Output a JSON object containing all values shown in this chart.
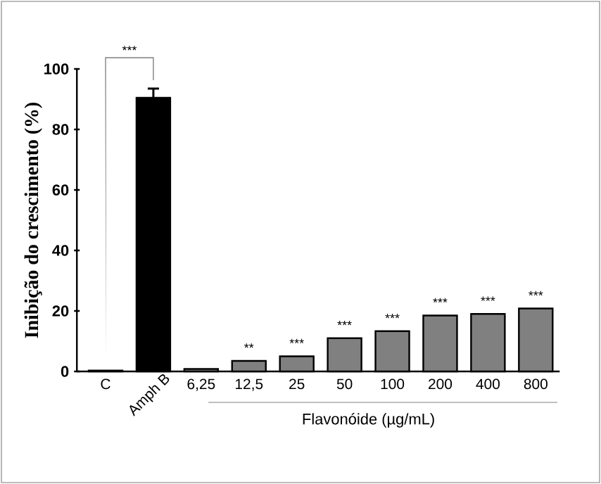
{
  "chart_data": {
    "type": "bar",
    "ylabel": "Inibição do crescimento (%)",
    "xlabel": "Flavonóide (µg/mL)",
    "categories": [
      "C",
      "Amph B",
      "6,25",
      "12,5",
      "25",
      "50",
      "100",
      "200",
      "400",
      "800"
    ],
    "values": [
      0.3,
      90.5,
      0.8,
      3.5,
      5,
      11,
      13.3,
      18.5,
      19,
      20.8
    ],
    "errors": [
      null,
      3,
      null,
      null,
      null,
      null,
      null,
      null,
      null,
      null
    ],
    "colors": [
      "#000000",
      "#000000",
      "#808080",
      "#808080",
      "#808080",
      "#808080",
      "#808080",
      "#808080",
      "#808080",
      "#808080"
    ],
    "ylim": [
      0,
      100
    ],
    "yticks": [
      0,
      20,
      40,
      60,
      80,
      100
    ],
    "grid": false,
    "annotations": [
      "***",
      {
        "text": "**",
        "x": "12,5",
        "y": 3.5
      },
      {
        "text": "***",
        "x": "25",
        "y": 5
      },
      {
        "text": "***",
        "x": "50",
        "y": 11
      },
      {
        "text": "***",
        "x": "100",
        "y": 13.3
      },
      {
        "text": "***",
        "x": "200",
        "y": 18.5
      },
      {
        "text": "***",
        "x": "400",
        "y": 19
      },
      {
        "text": "***",
        "x": "800",
        "y": 20.8
      }
    ]
  }
}
